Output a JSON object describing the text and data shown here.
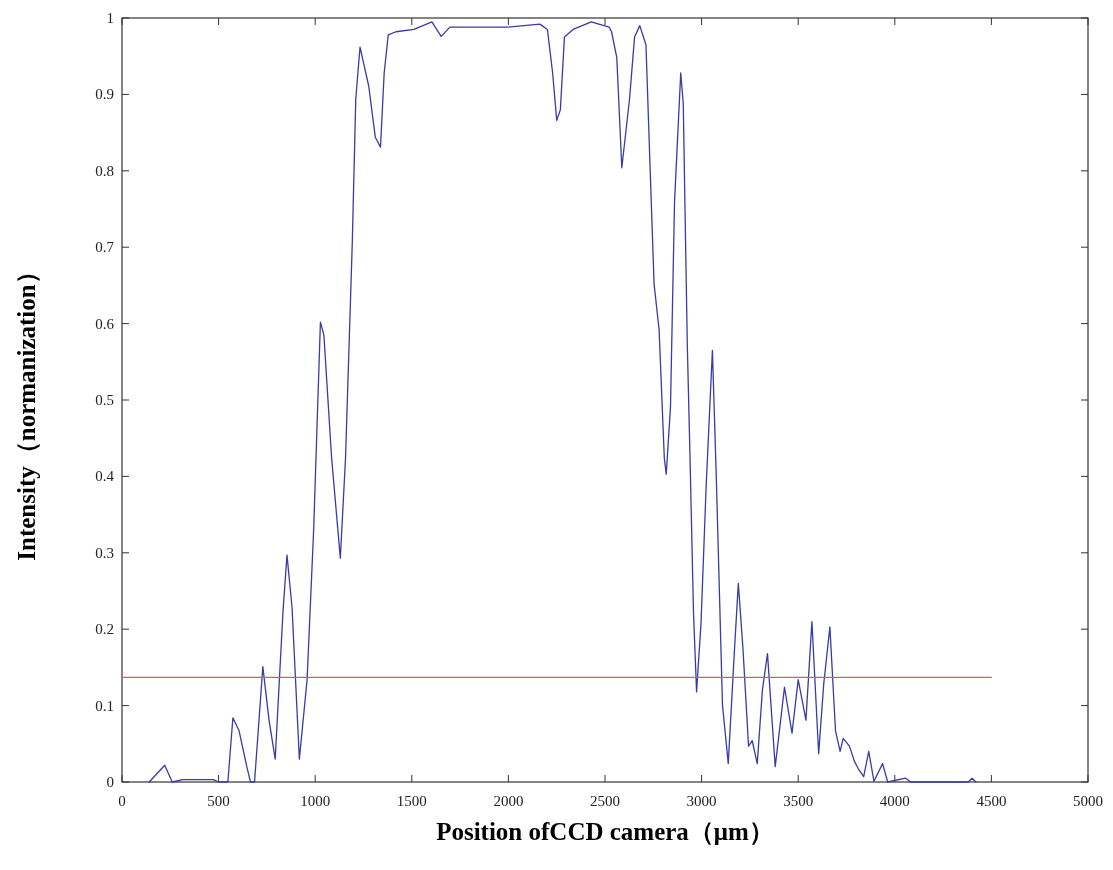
{
  "chart_data": {
    "type": "line",
    "xlabel": "Position ofCCD camera（μm）",
    "ylabel": "Intensity（normanization）",
    "xlim": [
      0,
      5000
    ],
    "xticks": [
      0,
      500,
      1000,
      1500,
      2000,
      2500,
      3000,
      3500,
      4000,
      4500,
      5000
    ],
    "ylim": [
      0,
      1
    ],
    "yticks": [
      0,
      0.1,
      0.2,
      0.3,
      0.4,
      0.5,
      0.6,
      0.7,
      0.8,
      0.9,
      1
    ],
    "grid": false,
    "marker": "none",
    "line_style": "solid",
    "series": [
      {
        "color": "#3a3aa8",
        "x": [
          141,
          221,
          260,
          314,
          473,
          500,
          548,
          574,
          606,
          646,
          665,
          686,
          729,
          761,
          793,
          833,
          854,
          880,
          918,
          958,
          992,
          1027,
          1045,
          1085,
          1130,
          1157,
          1192,
          1210,
          1232,
          1277,
          1311,
          1338,
          1357,
          1378,
          1418,
          1511,
          1604,
          1652,
          1697,
          1830,
          1990,
          2163,
          2202,
          2229,
          2250,
          2269,
          2290,
          2335,
          2429,
          2468,
          2522,
          2534,
          2561,
          2587,
          2627,
          2653,
          2680,
          2712,
          2733,
          2754,
          2780,
          2807,
          2817,
          2839,
          2860,
          2892,
          2905,
          2926,
          2939,
          2958,
          2974,
          2997,
          3024,
          3056,
          3077,
          3108,
          3138,
          3169,
          3190,
          3214,
          3243,
          3262,
          3288,
          3315,
          3341,
          3381,
          3429,
          3468,
          3500,
          3540,
          3571,
          3606,
          3632,
          3664,
          3693,
          3717,
          3733,
          3765,
          3791,
          3812,
          3839,
          3865,
          3892,
          3937,
          3963,
          4056,
          4082,
          4380,
          4400,
          4420
        ],
        "values": [
          0,
          0.022,
          0,
          0.003,
          0.003,
          0,
          0,
          0.084,
          0.067,
          0.02,
          0,
          0,
          0.151,
          0.081,
          0.03,
          0.222,
          0.297,
          0.229,
          0.03,
          0.134,
          0.33,
          0.602,
          0.585,
          0.424,
          0.293,
          0.424,
          0.706,
          0.894,
          0.962,
          0.911,
          0.844,
          0.831,
          0.928,
          0.978,
          0.982,
          0.985,
          0.995,
          0.976,
          0.988,
          0.988,
          0.988,
          0.992,
          0.985,
          0.928,
          0.866,
          0.88,
          0.975,
          0.985,
          0.995,
          0.992,
          0.988,
          0.982,
          0.948,
          0.804,
          0.894,
          0.975,
          0.99,
          0.965,
          0.807,
          0.652,
          0.592,
          0.424,
          0.403,
          0.491,
          0.76,
          0.928,
          0.888,
          0.572,
          0.437,
          0.222,
          0.118,
          0.208,
          0.39,
          0.565,
          0.39,
          0.101,
          0.024,
          0.168,
          0.26,
          0.175,
          0.047,
          0.054,
          0.024,
          0.121,
          0.168,
          0.02,
          0.124,
          0.064,
          0.134,
          0.081,
          0.21,
          0.037,
          0.128,
          0.203,
          0.067,
          0.04,
          0.057,
          0.047,
          0.027,
          0.017,
          0.007,
          0.04,
          0.001,
          0.024,
          0,
          0.005,
          0,
          0,
          0.005,
          0
        ]
      },
      {
        "color": "#c06868",
        "x": [
          0,
          4500
        ],
        "values": [
          0.137,
          0.137
        ]
      }
    ]
  }
}
